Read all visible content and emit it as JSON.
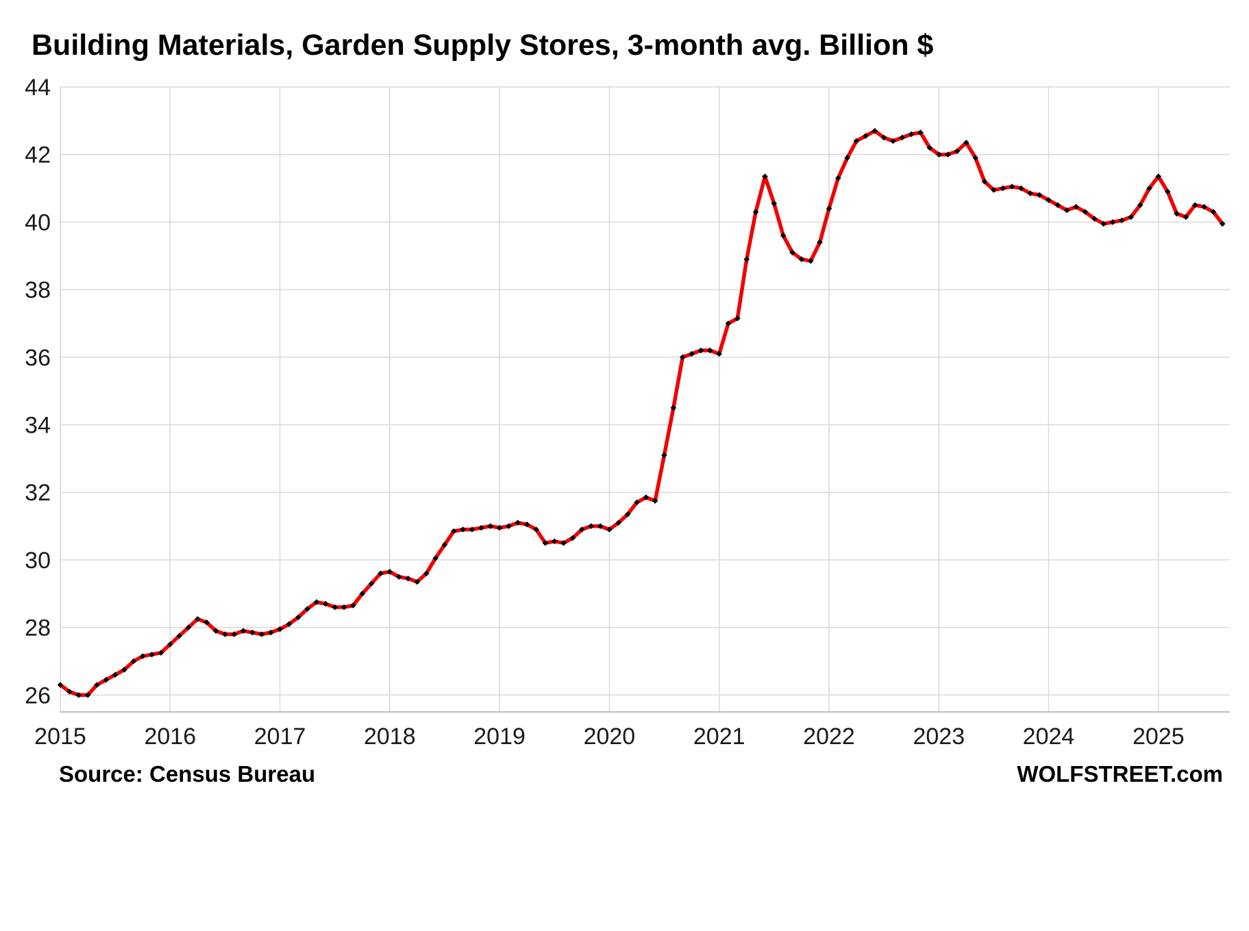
{
  "chart": {
    "title": "Building Materials, Garden Supply Stores, 3-month avg. Billion $",
    "source": "Source: Census Bureau",
    "watermark": "WOLFSTREET.com"
  },
  "chart_data": {
    "type": "line",
    "title": "Building Materials, Garden Supply Stores, 3-month avg. Billion $",
    "xlabel": "",
    "ylabel": "",
    "legend_position": "none",
    "grid": "both",
    "line_color": "#F20000",
    "marker_color": "#000000",
    "marker_shape": "diamond",
    "grid_color": "#D9D9D9",
    "axis_color": "#A6A6A6",
    "x_axis": {
      "min": 2015,
      "max": 2025.65,
      "tick_years": [
        2015,
        2016,
        2017,
        2018,
        2019,
        2020,
        2021,
        2022,
        2023,
        2024,
        2025
      ]
    },
    "y_axis": {
      "min": 25.5,
      "max": 44,
      "ticks": [
        26,
        28,
        30,
        32,
        34,
        36,
        38,
        40,
        42,
        44
      ]
    },
    "series": [
      {
        "name": "Building materials and garden supply stores, 3-month avg, billion $",
        "frequency": "monthly",
        "start_year": 2015,
        "start_month": 1,
        "values": [
          26.3,
          26.1,
          26.0,
          26.0,
          26.3,
          26.45,
          26.6,
          26.75,
          27.0,
          27.15,
          27.2,
          27.25,
          27.5,
          27.75,
          28.0,
          28.25,
          28.15,
          27.9,
          27.8,
          27.8,
          27.9,
          27.85,
          27.8,
          27.85,
          27.95,
          28.1,
          28.3,
          28.55,
          28.75,
          28.7,
          28.6,
          28.6,
          28.65,
          29.0,
          29.3,
          29.6,
          29.65,
          29.5,
          29.45,
          29.35,
          29.6,
          30.05,
          30.45,
          30.85,
          30.9,
          30.9,
          30.95,
          31.0,
          30.95,
          31.0,
          31.1,
          31.05,
          30.9,
          30.5,
          30.55,
          30.5,
          30.65,
          30.9,
          31.0,
          31.0,
          30.9,
          31.1,
          31.35,
          31.7,
          31.85,
          31.75,
          33.1,
          34.5,
          36.0,
          36.1,
          36.2,
          36.2,
          36.1,
          37.0,
          37.15,
          38.9,
          40.3,
          41.35,
          40.55,
          39.6,
          39.1,
          38.9,
          38.85,
          39.4,
          40.4,
          41.3,
          41.9,
          42.4,
          42.55,
          42.7,
          42.5,
          42.4,
          42.5,
          42.6,
          42.65,
          42.2,
          42.0,
          42.0,
          42.1,
          42.35,
          41.9,
          41.2,
          40.95,
          41.0,
          41.05,
          41.0,
          40.85,
          40.8,
          40.65,
          40.5,
          40.35,
          40.45,
          40.3,
          40.1,
          39.95,
          40.0,
          40.05,
          40.15,
          40.5,
          41.0,
          41.35,
          40.9,
          40.25,
          40.15,
          40.5,
          40.45,
          40.3,
          39.95
        ]
      }
    ]
  }
}
